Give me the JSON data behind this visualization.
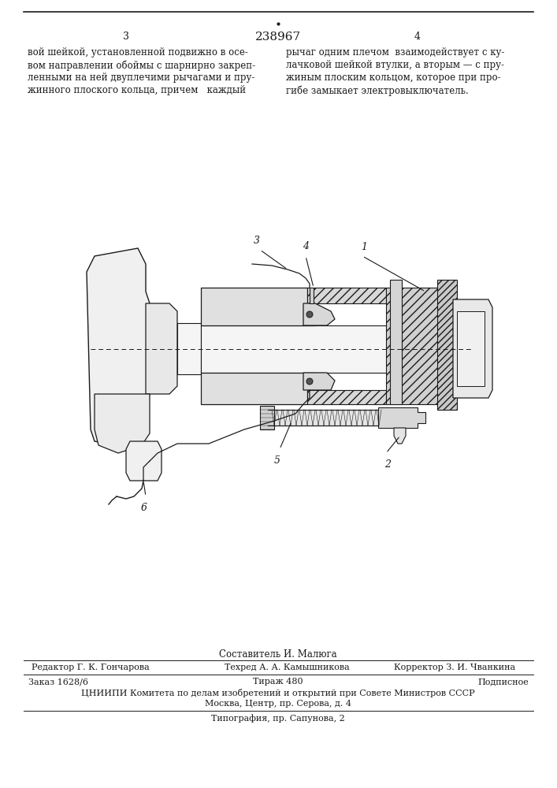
{
  "patent_number": "238967",
  "page_left": "3",
  "page_right": "4",
  "text_left": "вой шейкой, установленной подвижно в осе-\nвом направлении обоймы с шарнирно закреп-\nленными на ней двуплечими рычагами и пру-\nжинного плоского кольца, причем  каждый",
  "text_right": "рычаг одним плечом  взаимодействует с ку-\nлачковой шейкой втулки, а вторым — с пру-\nжиным плоским кольцом, которое при про-\nгибе замыкает электровыключатель.",
  "label_composer": "Составитель И. Малюга",
  "label_editor": "Редактор Г. К. Гончарова",
  "label_techred": "Техред А. А. Камышникова",
  "label_corrector": "Корректор З. И. Чванкина",
  "label_order": "Заказ 1628/6",
  "label_tirage": "Тираж 480",
  "label_subscription": "Подписное",
  "label_cniip1": "ЦНИИПИ Комитета по делам изобретений и открытий при Совете Министров СССР",
  "label_cniip2": "Москва, Центр, пр. Серова, д. 4",
  "label_typography": "Типография, пр. Сапунова, 2",
  "bg_color": "#ffffff",
  "text_color": "#1a1a1a"
}
